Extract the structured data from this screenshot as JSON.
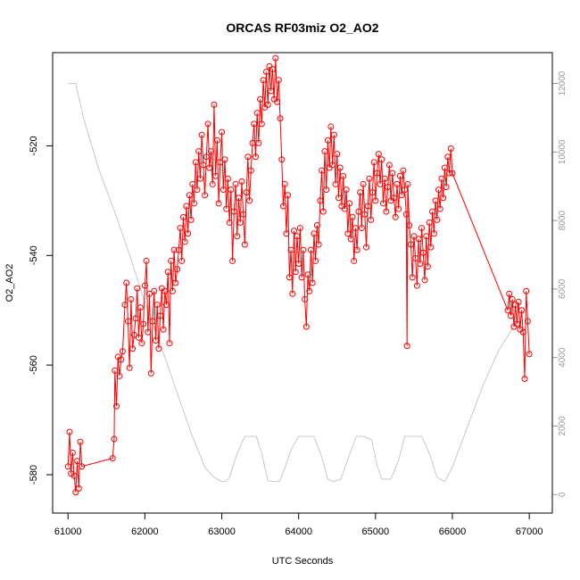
{
  "chart_data": {
    "type": "line",
    "title": "ORCAS RF03miz O2_AO2",
    "xlabel": "UTC Seconds",
    "ylabel": "O2_AO2",
    "xlim": [
      60800,
      67300
    ],
    "ylim": [
      -587,
      -503
    ],
    "y2lim": [
      -540,
      12900
    ],
    "x_ticks": [
      61000,
      62000,
      63000,
      64000,
      65000,
      66000,
      67000
    ],
    "y_ticks": [
      -580,
      -560,
      -540,
      -520
    ],
    "y2_ticks": [
      0,
      2000,
      4000,
      6000,
      8000,
      10000,
      12000
    ],
    "colors": {
      "primary": "#ff0000",
      "secondary": "#c8c8c8"
    },
    "grid": false,
    "series": [
      {
        "axis": "left",
        "style": "line+open-circles",
        "color": "#ff0000",
        "points": [
          [
            61000,
            -578.5
          ],
          [
            61020,
            -572.2
          ],
          [
            61040,
            -579.8
          ],
          [
            61060,
            -576.0
          ],
          [
            61080,
            -580.2
          ],
          [
            61100,
            -583.2
          ],
          [
            61120,
            -577.5
          ],
          [
            61140,
            -582.5
          ],
          [
            61160,
            -574.0
          ],
          [
            61180,
            -578.5
          ],
          [
            61580,
            -577.0
          ],
          [
            61600,
            -573.5
          ],
          [
            61610,
            -561.0
          ],
          [
            61630,
            -567.5
          ],
          [
            61650,
            -558.5
          ],
          [
            61670,
            -562.0
          ],
          [
            61690,
            -559.0
          ],
          [
            61710,
            -557.5
          ],
          [
            61740,
            -549.0
          ],
          [
            61760,
            -545.0
          ],
          [
            61780,
            -552.0
          ],
          [
            61800,
            -560.5
          ],
          [
            61820,
            -548.0
          ],
          [
            61840,
            -557.0
          ],
          [
            61860,
            -554.5
          ],
          [
            61880,
            -551.5
          ],
          [
            61900,
            -546.0
          ],
          [
            61920,
            -555.0
          ],
          [
            61940,
            -549.5
          ],
          [
            61960,
            -556.0
          ],
          [
            61980,
            -552.5
          ],
          [
            62000,
            -545.5
          ],
          [
            62020,
            -541.0
          ],
          [
            62040,
            -554.0
          ],
          [
            62060,
            -547.0
          ],
          [
            62080,
            -561.5
          ],
          [
            62100,
            -552.0
          ],
          [
            62120,
            -546.5
          ],
          [
            62140,
            -555.5
          ],
          [
            62160,
            -549.0
          ],
          [
            62180,
            -557.0
          ],
          [
            62200,
            -551.0
          ],
          [
            62220,
            -546.0
          ],
          [
            62240,
            -553.5
          ],
          [
            62260,
            -546.5
          ],
          [
            62280,
            -549.0
          ],
          [
            62300,
            -543.0
          ],
          [
            62320,
            -556.0
          ],
          [
            62340,
            -541.0
          ],
          [
            62360,
            -546.5
          ],
          [
            62380,
            -539.0
          ],
          [
            62400,
            -545.0
          ],
          [
            62420,
            -542.5
          ],
          [
            62440,
            -539.0
          ],
          [
            62460,
            -535.0
          ],
          [
            62480,
            -541.0
          ],
          [
            62500,
            -533.0
          ],
          [
            62520,
            -537.5
          ],
          [
            62540,
            -531.0
          ],
          [
            62560,
            -536.0
          ],
          [
            62580,
            -529.0
          ],
          [
            62600,
            -533.5
          ],
          [
            62620,
            -527.0
          ],
          [
            62640,
            -530.5
          ],
          [
            62660,
            -523.0
          ],
          [
            62680,
            -528.0
          ],
          [
            62700,
            -521.0
          ],
          [
            62720,
            -526.0
          ],
          [
            62740,
            -518.0
          ],
          [
            62760,
            -523.5
          ],
          [
            62780,
            -529.0
          ],
          [
            62800,
            -522.0
          ],
          [
            62820,
            -516.0
          ],
          [
            62840,
            -524.0
          ],
          [
            62860,
            -521.0
          ],
          [
            62880,
            -527.0
          ],
          [
            62900,
            -512.5
          ],
          [
            62920,
            -525.5
          ],
          [
            62940,
            -519.0
          ],
          [
            62960,
            -530.5
          ],
          [
            62980,
            -523.0
          ],
          [
            63000,
            -517.5
          ],
          [
            63020,
            -528.0
          ],
          [
            63040,
            -522.5
          ],
          [
            63060,
            -531.5
          ],
          [
            63080,
            -526.0
          ],
          [
            63100,
            -534.0
          ],
          [
            63120,
            -528.0
          ],
          [
            63140,
            -541.0
          ],
          [
            63160,
            -532.0
          ],
          [
            63180,
            -527.0
          ],
          [
            63200,
            -536.5
          ],
          [
            63220,
            -529.5
          ],
          [
            63240,
            -534.0
          ],
          [
            63260,
            -526.5
          ],
          [
            63280,
            -532.5
          ],
          [
            63300,
            -538.0
          ],
          [
            63320,
            -528.5
          ],
          [
            63340,
            -522.0
          ],
          [
            63360,
            -530.0
          ],
          [
            63380,
            -524.5
          ],
          [
            63400,
            -519.5
          ],
          [
            63420,
            -516.0
          ],
          [
            63440,
            -522.0
          ],
          [
            63460,
            -514.0
          ],
          [
            63480,
            -519.5
          ],
          [
            63500,
            -511.5
          ],
          [
            63520,
            -516.0
          ],
          [
            63540,
            -508.0
          ],
          [
            63560,
            -513.0
          ],
          [
            63580,
            -506.5
          ],
          [
            63600,
            -512.5
          ],
          [
            63620,
            -505.5
          ],
          [
            63640,
            -510.0
          ],
          [
            63660,
            -506.0
          ],
          [
            63680,
            -511.5
          ],
          [
            63700,
            -504.0
          ],
          [
            63720,
            -512.0
          ],
          [
            63740,
            -508.0
          ],
          [
            63760,
            -515.0
          ],
          [
            63780,
            -522.5
          ],
          [
            63800,
            -531.0
          ],
          [
            63820,
            -527.0
          ],
          [
            63840,
            -536.0
          ],
          [
            63860,
            -529.0
          ],
          [
            63880,
            -544.0
          ],
          [
            63900,
            -539.0
          ],
          [
            63920,
            -547.0
          ],
          [
            63940,
            -535.5
          ],
          [
            63960,
            -543.0
          ],
          [
            63980,
            -536.5
          ],
          [
            64000,
            -541.5
          ],
          [
            64020,
            -535.0
          ],
          [
            64040,
            -544.0
          ],
          [
            64060,
            -539.0
          ],
          [
            64080,
            -548.0
          ],
          [
            64100,
            -553.0
          ],
          [
            64120,
            -543.5
          ],
          [
            64140,
            -546.5
          ],
          [
            64160,
            -539.0
          ],
          [
            64180,
            -545.0
          ],
          [
            64200,
            -536.0
          ],
          [
            64220,
            -541.0
          ],
          [
            64240,
            -534.5
          ],
          [
            64260,
            -538.0
          ],
          [
            64280,
            -530.0
          ],
          [
            64300,
            -524.5
          ],
          [
            64320,
            -532.0
          ],
          [
            64340,
            -521.0
          ],
          [
            64360,
            -528.0
          ],
          [
            64380,
            -519.0
          ],
          [
            64400,
            -524.0
          ],
          [
            64420,
            -516.5
          ],
          [
            64440,
            -523.5
          ],
          [
            64460,
            -518.0
          ],
          [
            64480,
            -527.0
          ],
          [
            64500,
            -521.5
          ],
          [
            64520,
            -529.5
          ],
          [
            64540,
            -524.0
          ],
          [
            64560,
            -531.0
          ],
          [
            64580,
            -525.5
          ],
          [
            64600,
            -531.5
          ],
          [
            64620,
            -528.0
          ],
          [
            64640,
            -536.0
          ],
          [
            64660,
            -530.5
          ],
          [
            64680,
            -537.0
          ],
          [
            64700,
            -533.0
          ],
          [
            64720,
            -541.0
          ],
          [
            64740,
            -535.0
          ],
          [
            64760,
            -539.0
          ],
          [
            64780,
            -532.0
          ],
          [
            64800,
            -528.5
          ],
          [
            64820,
            -535.0
          ],
          [
            64840,
            -527.0
          ],
          [
            64860,
            -532.5
          ],
          [
            64880,
            -538.5
          ],
          [
            64900,
            -531.0
          ],
          [
            64920,
            -526.0
          ],
          [
            64940,
            -533.5
          ],
          [
            64960,
            -528.5
          ],
          [
            64980,
            -523.0
          ],
          [
            65000,
            -530.0
          ],
          [
            65020,
            -525.0
          ],
          [
            65040,
            -521.5
          ],
          [
            65060,
            -527.0
          ],
          [
            65080,
            -522.5
          ],
          [
            65100,
            -530.5
          ],
          [
            65120,
            -526.0
          ],
          [
            65140,
            -532.0
          ],
          [
            65160,
            -527.5
          ],
          [
            65180,
            -523.5
          ],
          [
            65200,
            -530.0
          ],
          [
            65220,
            -525.0
          ],
          [
            65240,
            -529.5
          ],
          [
            65260,
            -533.0
          ],
          [
            65280,
            -527.0
          ],
          [
            65300,
            -531.5
          ],
          [
            65320,
            -525.5
          ],
          [
            65340,
            -529.0
          ],
          [
            65360,
            -524.5
          ],
          [
            65380,
            -528.0
          ],
          [
            65400,
            -532.5
          ],
          [
            65410,
            -556.5
          ],
          [
            65420,
            -527.0
          ],
          [
            65440,
            -534.5
          ],
          [
            65460,
            -538.0
          ],
          [
            65480,
            -544.0
          ],
          [
            65500,
            -536.5
          ],
          [
            65520,
            -540.5
          ],
          [
            65540,
            -545.5
          ],
          [
            65560,
            -537.0
          ],
          [
            65580,
            -541.5
          ],
          [
            65600,
            -535.0
          ],
          [
            65620,
            -539.5
          ],
          [
            65640,
            -544.5
          ],
          [
            65660,
            -536.5
          ],
          [
            65680,
            -542.0
          ],
          [
            65700,
            -534.0
          ],
          [
            65720,
            -538.5
          ],
          [
            65740,
            -532.0
          ],
          [
            65760,
            -536.0
          ],
          [
            65780,
            -530.0
          ],
          [
            65800,
            -533.5
          ],
          [
            65820,
            -528.0
          ],
          [
            65840,
            -531.5
          ],
          [
            65860,
            -526.0
          ],
          [
            65880,
            -529.5
          ],
          [
            65900,
            -524.0
          ],
          [
            65920,
            -527.5
          ],
          [
            65940,
            -522.0
          ],
          [
            65960,
            -525.0
          ],
          [
            65980,
            -520.5
          ],
          [
            66000,
            -525.0
          ],
          [
            66720,
            -550.0
          ],
          [
            66740,
            -547.0
          ],
          [
            66760,
            -551.0
          ],
          [
            66780,
            -548.0
          ],
          [
            66800,
            -553.0
          ],
          [
            66820,
            -549.0
          ],
          [
            66840,
            -552.5
          ],
          [
            66860,
            -548.5
          ],
          [
            66880,
            -553.5
          ],
          [
            66900,
            -550.0
          ],
          [
            66920,
            -554.0
          ],
          [
            66940,
            -562.5
          ],
          [
            66960,
            -546.5
          ],
          [
            66980,
            -552.0
          ],
          [
            67000,
            -558.0
          ]
        ]
      },
      {
        "axis": "right",
        "style": "line",
        "color": "#c8c8c8",
        "points": [
          [
            61000,
            12000
          ],
          [
            61100,
            12000
          ],
          [
            61200,
            11000
          ],
          [
            61400,
            9500
          ],
          [
            61600,
            8300
          ],
          [
            61800,
            7000
          ],
          [
            62000,
            5600
          ],
          [
            62200,
            4400
          ],
          [
            62400,
            3100
          ],
          [
            62600,
            1800
          ],
          [
            62780,
            800
          ],
          [
            62900,
            500
          ],
          [
            63000,
            380
          ],
          [
            63050,
            380
          ],
          [
            63100,
            500
          ],
          [
            63200,
            1200
          ],
          [
            63300,
            1700
          ],
          [
            63400,
            1700
          ],
          [
            63450,
            1700
          ],
          [
            63520,
            1200
          ],
          [
            63600,
            400
          ],
          [
            63700,
            380
          ],
          [
            63750,
            380
          ],
          [
            63800,
            650
          ],
          [
            63900,
            1300
          ],
          [
            64000,
            1700
          ],
          [
            64100,
            1700
          ],
          [
            64200,
            1700
          ],
          [
            64300,
            1100
          ],
          [
            64380,
            450
          ],
          [
            64450,
            380
          ],
          [
            64550,
            450
          ],
          [
            64650,
            1100
          ],
          [
            64750,
            1700
          ],
          [
            64850,
            1700
          ],
          [
            64950,
            1600
          ],
          [
            65020,
            850
          ],
          [
            65080,
            450
          ],
          [
            65200,
            450
          ],
          [
            65300,
            1000
          ],
          [
            65380,
            1700
          ],
          [
            65500,
            1700
          ],
          [
            65600,
            1700
          ],
          [
            65700,
            1200
          ],
          [
            65800,
            500
          ],
          [
            65900,
            380
          ],
          [
            66000,
            800
          ],
          [
            66200,
            2000
          ],
          [
            66400,
            3200
          ],
          [
            66600,
            4200
          ],
          [
            66800,
            4900
          ],
          [
            67000,
            5600
          ]
        ]
      }
    ]
  }
}
